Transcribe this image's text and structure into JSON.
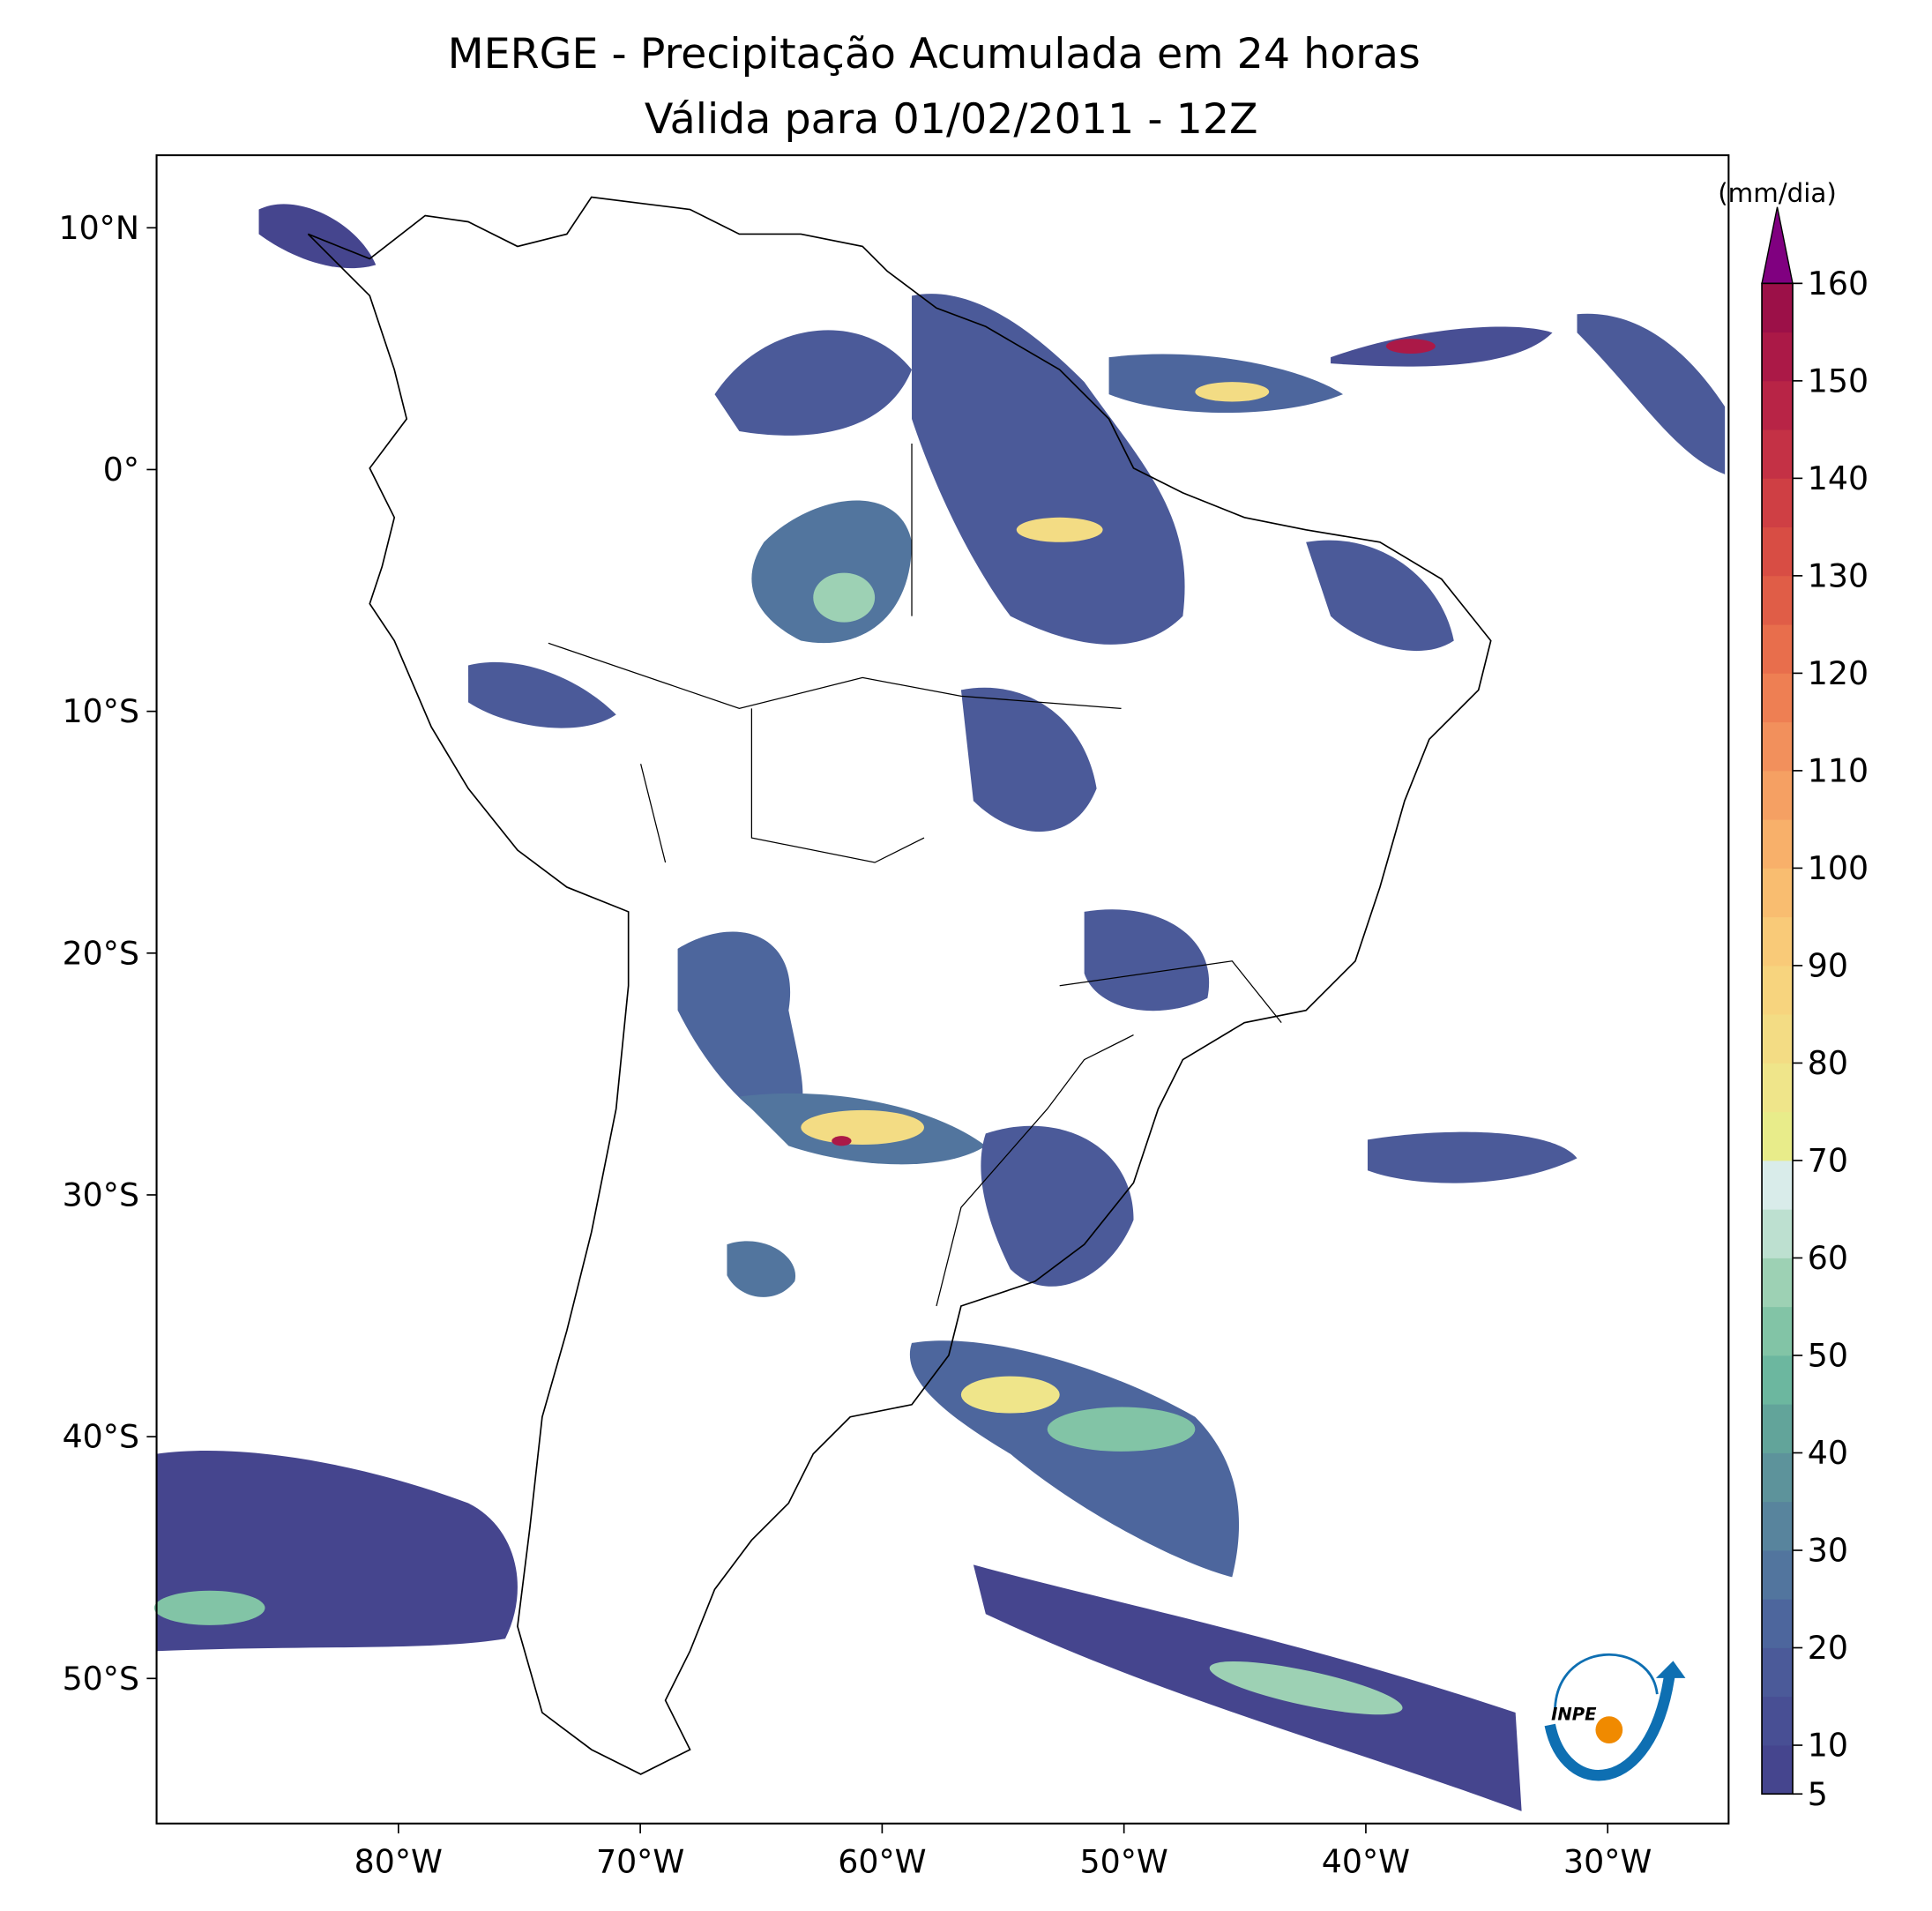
{
  "chart_data": {
    "type": "map",
    "title": "MERGE - Precipitação Acumulada em 24 horas",
    "subtitle": "Válida para 01/02/2011 - 12Z",
    "xlim": [
      -90,
      -25
    ],
    "ylim": [
      -56,
      13
    ],
    "xticks": [
      {
        "value": -80,
        "label": "80°W"
      },
      {
        "value": -70,
        "label": "70°W"
      },
      {
        "value": -60,
        "label": "60°W"
      },
      {
        "value": -50,
        "label": "50°W"
      },
      {
        "value": -40,
        "label": "40°W"
      },
      {
        "value": -30,
        "label": "30°W"
      }
    ],
    "yticks": [
      {
        "value": 10,
        "label": "10°N"
      },
      {
        "value": 0,
        "label": "0°"
      },
      {
        "value": -10,
        "label": "10°S"
      },
      {
        "value": -20,
        "label": "20°S"
      },
      {
        "value": -30,
        "label": "30°S"
      },
      {
        "value": -40,
        "label": "40°S"
      },
      {
        "value": -50,
        "label": "50°S"
      }
    ],
    "colorbar": {
      "label": "(mm/dia)",
      "lim": [
        5,
        160
      ],
      "ticks": [
        5,
        10,
        20,
        30,
        40,
        50,
        60,
        70,
        80,
        90,
        100,
        110,
        120,
        130,
        140,
        150,
        160
      ],
      "colors": [
        "#45458e",
        "#484f94",
        "#4b5a99",
        "#4d669d",
        "#52759e",
        "#58849d",
        "#5d939b",
        "#62a49a",
        "#6cb79f",
        "#82c4a6",
        "#9dd1b4",
        "#bde0d0",
        "#d9ecea",
        "#e8ec8a",
        "#efe58a",
        "#f3dc84",
        "#f7d47e",
        "#f9ca78",
        "#f9bd70",
        "#f8b06a",
        "#f5a063",
        "#f2905c",
        "#ee7f53",
        "#e86e4c",
        "#e05d47",
        "#d84d44",
        "#cf3f44",
        "#c43145",
        "#b82446",
        "#ab1947",
        "#9c1048"
      ],
      "extend_color": "#800080"
    },
    "logo_text": "INPE"
  }
}
